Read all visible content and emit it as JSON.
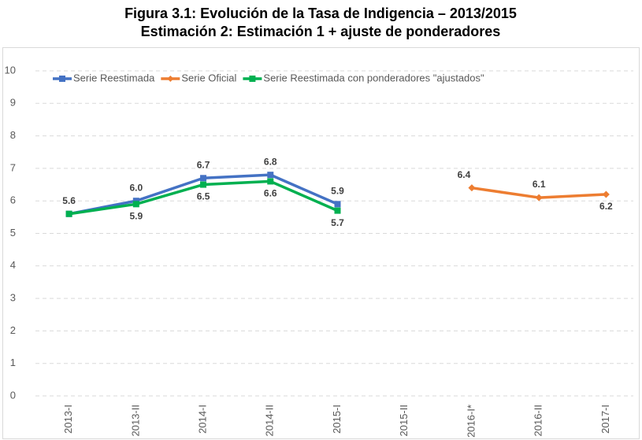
{
  "chart_data": {
    "type": "line",
    "title": "Figura 3.1: Evolución de la Tasa de Indigencia – 2013/2015",
    "subtitle": "Estimación 2: Estimación 1 + ajuste de ponderadores",
    "categories": [
      "2013-I",
      "2013-II",
      "2014-I",
      "2014-II",
      "2015-I",
      "2015-II",
      "2016-I*",
      "2016-II",
      "2017-I"
    ],
    "series": [
      {
        "name": "Serie Reestimada",
        "color": "#4472c4",
        "marker": "square",
        "values": [
          5.6,
          6.0,
          6.7,
          6.8,
          5.9,
          null,
          null,
          null,
          null
        ],
        "value_labels": [
          "5.6",
          "6.0",
          "6.7",
          "6.8",
          "5.9",
          null,
          null,
          null,
          null
        ]
      },
      {
        "name": "Serie Oficial",
        "color": "#ed7d31",
        "marker": "diamond",
        "values": [
          null,
          null,
          null,
          null,
          null,
          null,
          6.4,
          6.1,
          6.2
        ]
      },
      {
        "name": "Serie Reestimada con ponderadores \"ajustados\"",
        "color": "#00b050",
        "marker": "square",
        "values": [
          5.6,
          5.9,
          6.5,
          6.6,
          5.7,
          null,
          null,
          null,
          null
        ],
        "value_labels": [
          null,
          "5.9",
          "6.5",
          "6.6",
          "5.7",
          null,
          null,
          null,
          null
        ]
      }
    ],
    "ylim": [
      0,
      10
    ],
    "yticks": [
      0,
      1,
      2,
      3,
      4,
      5,
      6,
      7,
      8,
      9,
      10
    ],
    "grid": true,
    "legend": "top-left"
  }
}
